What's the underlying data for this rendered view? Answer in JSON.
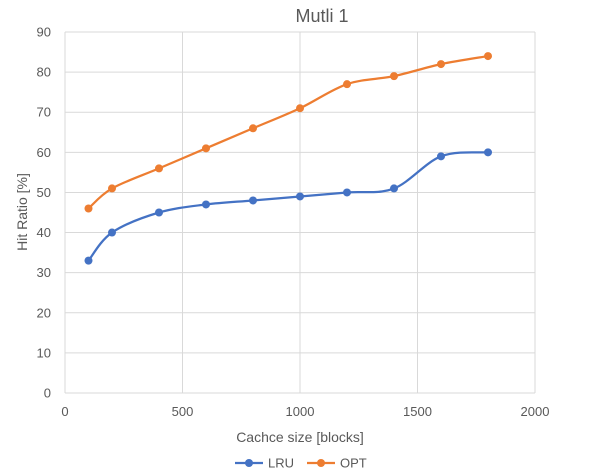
{
  "chart_data": {
    "type": "line",
    "title": "Mutli 1",
    "xlabel": "Cachce size [blocks]",
    "ylabel": "Hit Ratio [%]",
    "xlim": [
      0,
      2000
    ],
    "ylim": [
      0,
      90
    ],
    "x_ticks": [
      "0",
      "500",
      "1000",
      "1500",
      "2000"
    ],
    "y_ticks": [
      "0",
      "10",
      "20",
      "30",
      "40",
      "50",
      "60",
      "70",
      "80",
      "90"
    ],
    "grid": "both",
    "legend_position": "bottom",
    "smooth": true,
    "series": [
      {
        "name": "LRU",
        "color": "#4472c4",
        "x": [
          100,
          200,
          400,
          600,
          800,
          1000,
          1200,
          1400,
          1600,
          1800
        ],
        "y": [
          33,
          40,
          45,
          47,
          48,
          49,
          50,
          51,
          59,
          60
        ]
      },
      {
        "name": "OPT",
        "color": "#ed7d31",
        "x": [
          100,
          200,
          400,
          600,
          800,
          1000,
          1200,
          1400,
          1600,
          1800
        ],
        "y": [
          46,
          51,
          56,
          61,
          66,
          71,
          77,
          79,
          82,
          84
        ]
      }
    ]
  }
}
